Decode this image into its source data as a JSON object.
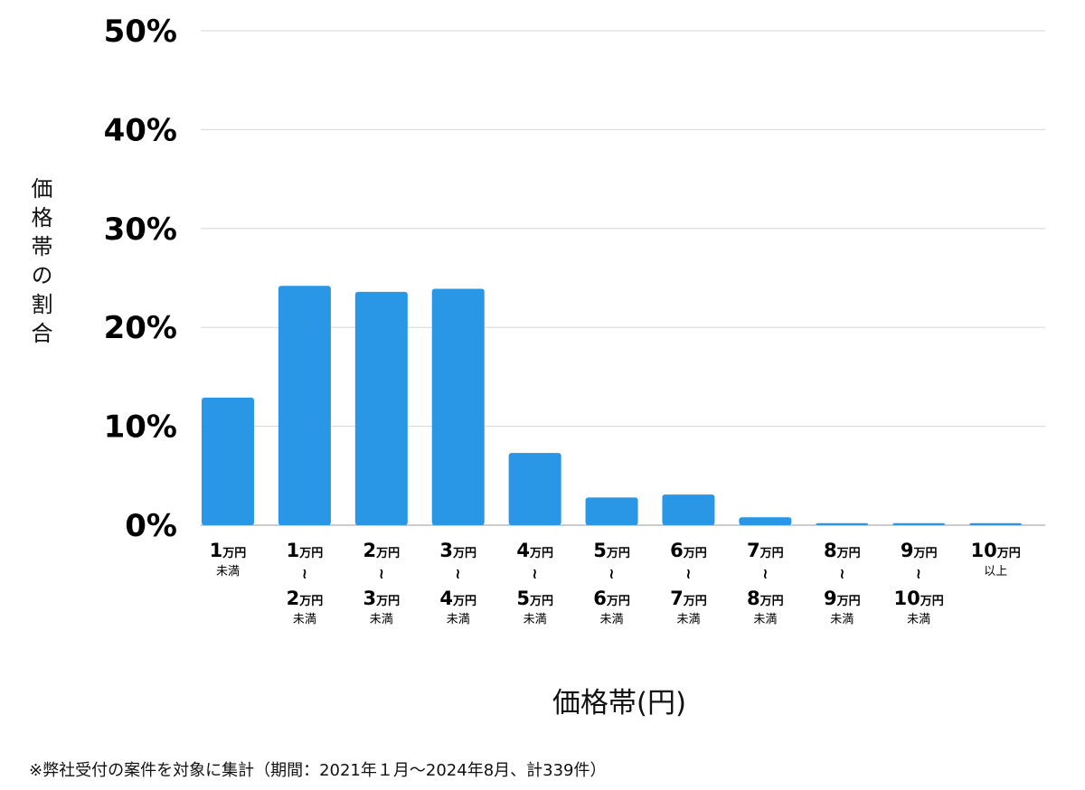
{
  "chart_data": {
    "type": "bar",
    "ylabel": "価格帯の割合",
    "xlabel": "価格帯(円)",
    "ylim": [
      0,
      50
    ],
    "yticks": [
      "0%",
      "10%",
      "20%",
      "30%",
      "40%",
      "50%"
    ],
    "grid": true,
    "color": "#2a96e6",
    "categories": [
      {
        "lines": [
          [
            "1",
            "万円"
          ],
          [
            "",
            "未満"
          ]
        ]
      },
      {
        "lines": [
          [
            "1",
            "万円"
          ],
          [
            "~",
            ""
          ],
          [
            "2",
            "万円"
          ],
          [
            "",
            "未満"
          ]
        ]
      },
      {
        "lines": [
          [
            "2",
            "万円"
          ],
          [
            "~",
            ""
          ],
          [
            "3",
            "万円"
          ],
          [
            "",
            "未満"
          ]
        ]
      },
      {
        "lines": [
          [
            "3",
            "万円"
          ],
          [
            "~",
            ""
          ],
          [
            "4",
            "万円"
          ],
          [
            "",
            "未満"
          ]
        ]
      },
      {
        "lines": [
          [
            "4",
            "万円"
          ],
          [
            "~",
            ""
          ],
          [
            "5",
            "万円"
          ],
          [
            "",
            "未満"
          ]
        ]
      },
      {
        "lines": [
          [
            "5",
            "万円"
          ],
          [
            "~",
            ""
          ],
          [
            "6",
            "万円"
          ],
          [
            "",
            "未満"
          ]
        ]
      },
      {
        "lines": [
          [
            "6",
            "万円"
          ],
          [
            "~",
            ""
          ],
          [
            "7",
            "万円"
          ],
          [
            "",
            "未満"
          ]
        ]
      },
      {
        "lines": [
          [
            "7",
            "万円"
          ],
          [
            "~",
            ""
          ],
          [
            "8",
            "万円"
          ],
          [
            "",
            "未満"
          ]
        ]
      },
      {
        "lines": [
          [
            "8",
            "万円"
          ],
          [
            "~",
            ""
          ],
          [
            "9",
            "万円"
          ],
          [
            "",
            "未満"
          ]
        ]
      },
      {
        "lines": [
          [
            "9",
            "万円"
          ],
          [
            "~",
            ""
          ],
          [
            "10",
            "万円"
          ],
          [
            "",
            "未満"
          ]
        ]
      },
      {
        "lines": [
          [
            "10",
            "万円"
          ],
          [
            "",
            "以上"
          ]
        ]
      }
    ],
    "values": [
      12.9,
      24.2,
      23.6,
      23.9,
      7.3,
      2.8,
      3.1,
      0.8,
      0.2,
      0.2,
      0.2
    ]
  },
  "footnote": "※弊社受付の案件を対象に集計（期間：2021年１月～2024年8月、計339件）"
}
